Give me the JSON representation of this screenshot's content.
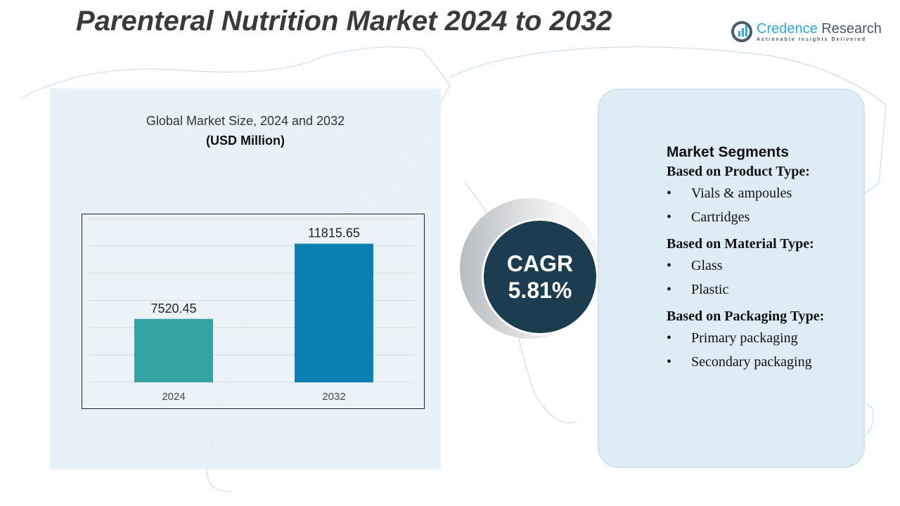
{
  "title": "Parenteral Nutrition Market 2024 to 2032",
  "logo": {
    "name1": "Credence",
    "name2": " Research",
    "tagline": "Actionable Insights Delivered"
  },
  "chart_data": {
    "type": "bar",
    "title": "Global Market Size, 2024 and 2032",
    "unit": "(USD Million)",
    "categories": [
      "2024",
      "2032"
    ],
    "values": [
      7520.45,
      11815.65
    ],
    "labels": [
      "7520.45",
      "11815.65"
    ],
    "colors": [
      "#34a3a3",
      "#0b80b2"
    ],
    "ylim": [
      3900,
      13250
    ],
    "grid": true
  },
  "cagr": {
    "label": "CAGR",
    "value": "5.81%"
  },
  "segments": {
    "heading": "Market Segments",
    "groups": [
      {
        "title": "Based on Product Type:",
        "items": [
          "Vials & ampoules",
          "Cartridges"
        ]
      },
      {
        "title": "Based on Material Type:",
        "items": [
          "Glass",
          "Plastic"
        ]
      },
      {
        "title": "Based on Packaging Type:",
        "items": [
          "Primary packaging",
          "Secondary packaging"
        ]
      }
    ]
  }
}
